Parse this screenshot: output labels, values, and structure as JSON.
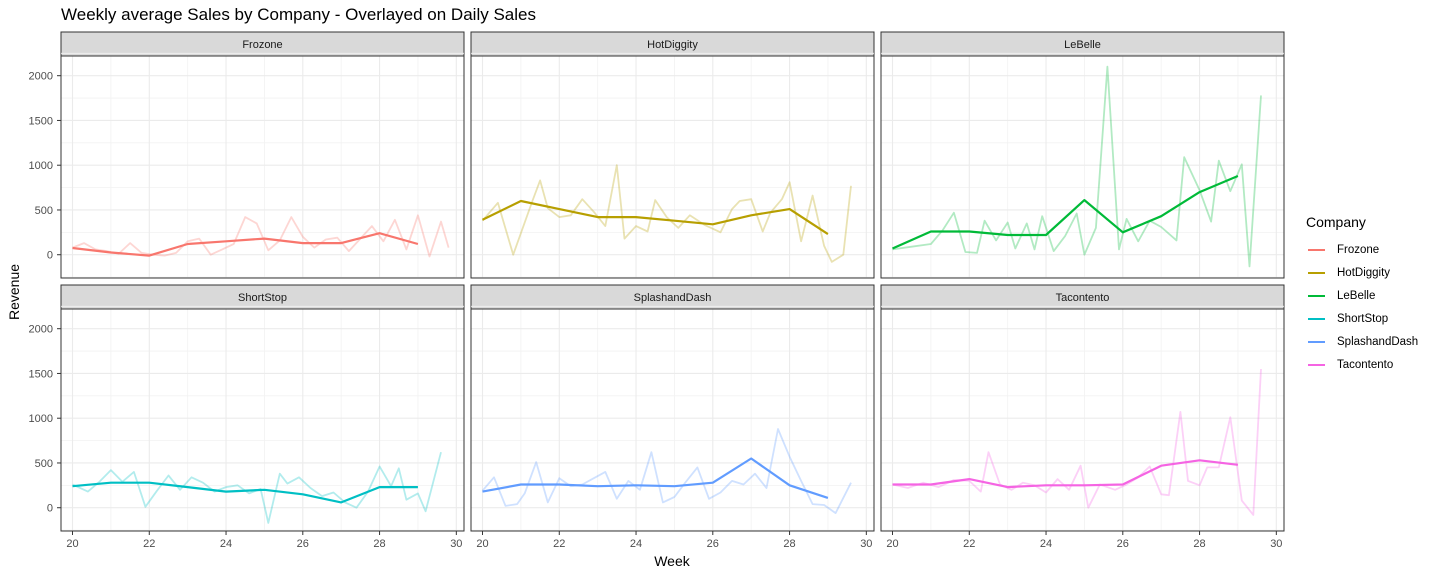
{
  "chart_data": {
    "type": "line",
    "title": "Weekly average Sales by Company - Overlayed on Daily Sales",
    "xlabel": "Week",
    "ylabel": "Revenue",
    "xlim": [
      19.7,
      30.2
    ],
    "ylim": [
      -260,
      2220
    ],
    "x_ticks": [
      20,
      22,
      24,
      26,
      28,
      30
    ],
    "y_ticks": [
      0,
      500,
      1000,
      1500,
      2000
    ],
    "legend": {
      "title": "Company",
      "placement": "right",
      "entries": [
        "Frozone",
        "HotDiggity",
        "LeBelle",
        "ShortStop",
        "SplashandDash",
        "Tacontento"
      ]
    },
    "panels": [
      {
        "name": "Frozone",
        "color": "#F8766D",
        "weekly_x": [
          20,
          21,
          22,
          23,
          24,
          25,
          26,
          27,
          28,
          29
        ],
        "weekly_y": [
          75,
          25,
          -10,
          120,
          150,
          180,
          130,
          130,
          240,
          120
        ],
        "daily_x": [
          20,
          20.3,
          20.6,
          20.9,
          21.2,
          21.5,
          21.8,
          22.1,
          22.4,
          22.7,
          23,
          23.3,
          23.6,
          23.9,
          24.2,
          24.5,
          24.8,
          25.1,
          25.4,
          25.7,
          26,
          26.3,
          26.6,
          26.9,
          27.2,
          27.5,
          27.8,
          28.1,
          28.4,
          28.7,
          29,
          29.3,
          29.6,
          29.8
        ],
        "daily_y": [
          80,
          130,
          60,
          40,
          10,
          130,
          20,
          0,
          -10,
          20,
          150,
          180,
          0,
          60,
          120,
          420,
          350,
          50,
          160,
          420,
          200,
          80,
          170,
          190,
          40,
          180,
          320,
          150,
          390,
          60,
          440,
          -20,
          370,
          80
        ]
      },
      {
        "name": "HotDiggity",
        "color": "#B79F00",
        "weekly_x": [
          20,
          21,
          22,
          23,
          24,
          25,
          26,
          27,
          28,
          29
        ],
        "weekly_y": [
          390,
          600,
          510,
          420,
          420,
          380,
          340,
          440,
          510,
          230
        ],
        "daily_x": [
          20,
          20.4,
          20.8,
          21.3,
          21.5,
          21.7,
          22,
          22.3,
          22.6,
          22.9,
          23.2,
          23.5,
          23.7,
          24,
          24.3,
          24.5,
          24.8,
          25.1,
          25.4,
          25.8,
          26.2,
          26.5,
          26.7,
          27,
          27.3,
          27.5,
          27.8,
          28,
          28.3,
          28.6,
          28.9,
          29.1,
          29.4,
          29.6
        ],
        "daily_y": [
          380,
          580,
          0,
          600,
          830,
          520,
          420,
          440,
          620,
          480,
          320,
          1000,
          180,
          320,
          260,
          610,
          420,
          300,
          440,
          330,
          250,
          510,
          600,
          620,
          260,
          470,
          620,
          810,
          150,
          660,
          100,
          -80,
          0,
          770
        ]
      },
      {
        "name": "LeBelle",
        "color": "#00BA38",
        "weekly_x": [
          20,
          21,
          22,
          23,
          24,
          25,
          26,
          27,
          28,
          29
        ],
        "weekly_y": [
          70,
          260,
          260,
          220,
          220,
          610,
          250,
          430,
          700,
          880
        ],
        "daily_x": [
          20,
          20.5,
          21,
          21.3,
          21.6,
          21.9,
          22.2,
          22.4,
          22.7,
          23,
          23.2,
          23.5,
          23.7,
          23.9,
          24.2,
          24.5,
          24.8,
          25,
          25.3,
          25.6,
          25.9,
          26.1,
          26.4,
          26.7,
          27,
          27.4,
          27.6,
          28,
          28.3,
          28.5,
          28.8,
          29.1,
          29.3,
          29.6
        ],
        "daily_y": [
          60,
          90,
          120,
          270,
          470,
          30,
          20,
          380,
          160,
          360,
          70,
          350,
          60,
          430,
          40,
          210,
          460,
          0,
          300,
          2100,
          60,
          400,
          150,
          380,
          310,
          160,
          1090,
          720,
          370,
          1050,
          710,
          1010,
          -130,
          1780
        ]
      },
      {
        "name": "ShortStop",
        "color": "#00BFC4",
        "weekly_x": [
          20,
          21,
          22,
          23,
          24,
          25,
          26,
          27,
          28,
          29
        ],
        "weekly_y": [
          240,
          280,
          280,
          230,
          180,
          200,
          150,
          60,
          230,
          230
        ],
        "daily_x": [
          20,
          20.4,
          20.7,
          21,
          21.3,
          21.6,
          21.9,
          22.2,
          22.5,
          22.8,
          23.1,
          23.4,
          23.7,
          24,
          24.3,
          24.6,
          24.9,
          25.1,
          25.4,
          25.6,
          25.9,
          26.2,
          26.5,
          26.8,
          27.1,
          27.4,
          27.7,
          28,
          28.3,
          28.5,
          28.7,
          29,
          29.2,
          29.6
        ],
        "daily_y": [
          260,
          180,
          290,
          420,
          290,
          400,
          10,
          190,
          360,
          200,
          340,
          280,
          180,
          230,
          250,
          160,
          210,
          -170,
          380,
          270,
          340,
          220,
          130,
          170,
          60,
          0,
          180,
          460,
          240,
          440,
          90,
          160,
          -40,
          620
        ]
      },
      {
        "name": "SplashandDash",
        "color": "#619CFF",
        "weekly_x": [
          20,
          21,
          22,
          23,
          24,
          25,
          26,
          27,
          28,
          29
        ],
        "weekly_y": [
          180,
          260,
          260,
          240,
          250,
          240,
          280,
          550,
          250,
          110
        ],
        "daily_x": [
          20,
          20.3,
          20.6,
          20.9,
          21.1,
          21.4,
          21.7,
          22,
          22.3,
          22.6,
          22.9,
          23.2,
          23.5,
          23.8,
          24.1,
          24.4,
          24.7,
          25,
          25.3,
          25.6,
          25.9,
          26.2,
          26.5,
          26.8,
          27.1,
          27.4,
          27.7,
          28,
          28.3,
          28.6,
          28.9,
          29.2,
          29.6
        ],
        "daily_y": [
          190,
          340,
          20,
          40,
          160,
          510,
          60,
          330,
          240,
          260,
          330,
          400,
          100,
          300,
          200,
          620,
          60,
          120,
          290,
          450,
          100,
          170,
          300,
          260,
          380,
          220,
          880,
          570,
          300,
          40,
          30,
          -60,
          280
        ]
      },
      {
        "name": "Tacontento",
        "color": "#F564E3",
        "weekly_x": [
          20,
          21,
          22,
          23,
          24,
          25,
          26,
          27,
          28,
          29
        ],
        "weekly_y": [
          260,
          260,
          320,
          230,
          250,
          250,
          260,
          470,
          530,
          480
        ],
        "daily_x": [
          20,
          20.4,
          20.8,
          21.2,
          21.6,
          22,
          22.3,
          22.5,
          22.8,
          23.1,
          23.4,
          23.7,
          24,
          24.3,
          24.6,
          24.9,
          25.1,
          25.4,
          25.8,
          26.1,
          26.4,
          26.7,
          27,
          27.2,
          27.5,
          27.7,
          28,
          28.2,
          28.5,
          28.8,
          29.1,
          29.4,
          29.6
        ],
        "daily_y": [
          260,
          220,
          280,
          230,
          310,
          300,
          180,
          620,
          260,
          200,
          280,
          250,
          170,
          320,
          200,
          470,
          0,
          260,
          200,
          260,
          340,
          460,
          150,
          140,
          1070,
          300,
          250,
          450,
          450,
          1010,
          80,
          -80,
          1550
        ]
      }
    ]
  }
}
